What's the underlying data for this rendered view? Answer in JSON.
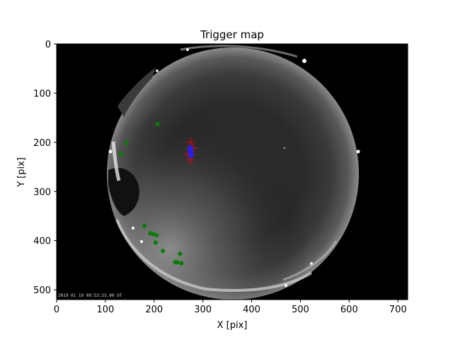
{
  "chart_data": {
    "type": "scatter",
    "title": "Trigger map",
    "xlabel": "X [pix]",
    "ylabel": "Y [pix]",
    "xlim": [
      0,
      720
    ],
    "ylim": [
      520,
      0
    ],
    "xticks": [
      0,
      100,
      200,
      300,
      400,
      500,
      600,
      700
    ],
    "yticks": [
      0,
      100,
      200,
      300,
      400,
      500
    ],
    "background_image": "all-sky fisheye night camera frame",
    "timestamp_overlay": "2019 01 19 09:53:23.00 UT",
    "series": [
      {
        "marker": "circle",
        "color": "#008000",
        "points": [
          {
            "x": 207,
            "y": 163
          },
          {
            "x": 143,
            "y": 201
          },
          {
            "x": 132,
            "y": 224
          },
          {
            "x": 180,
            "y": 370
          },
          {
            "x": 192,
            "y": 385
          },
          {
            "x": 198,
            "y": 387
          },
          {
            "x": 205,
            "y": 389
          },
          {
            "x": 203,
            "y": 404
          },
          {
            "x": 218,
            "y": 421
          },
          {
            "x": 253,
            "y": 427
          },
          {
            "x": 243,
            "y": 444
          },
          {
            "x": 248,
            "y": 444
          },
          {
            "x": 256,
            "y": 446
          }
        ]
      },
      {
        "marker": "plus",
        "color": "#ff0000",
        "points": [
          {
            "x": 275,
            "y": 200
          },
          {
            "x": 275,
            "y": 212
          },
          {
            "x": 275,
            "y": 224
          },
          {
            "x": 275,
            "y": 236
          },
          {
            "x": 280,
            "y": 212
          },
          {
            "x": 270,
            "y": 224
          }
        ]
      },
      {
        "marker": "square",
        "color": "#1f1fff",
        "points": [
          {
            "x": 274,
            "y": 210
          },
          {
            "x": 276,
            "y": 213
          },
          {
            "x": 273,
            "y": 216
          },
          {
            "x": 276,
            "y": 219
          },
          {
            "x": 274,
            "y": 222
          },
          {
            "x": 277,
            "y": 225
          },
          {
            "x": 275,
            "y": 228
          }
        ]
      }
    ]
  }
}
